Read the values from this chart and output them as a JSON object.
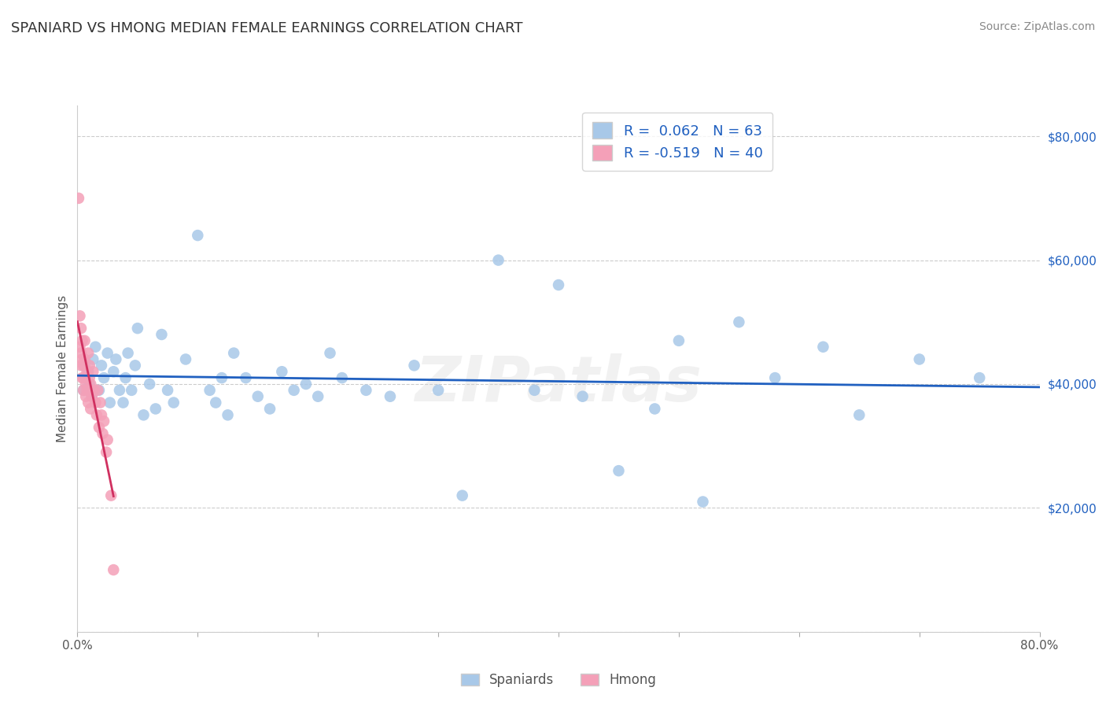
{
  "title": "SPANIARD VS HMONG MEDIAN FEMALE EARNINGS CORRELATION CHART",
  "source": "Source: ZipAtlas.com",
  "ylabel": "Median Female Earnings",
  "xlim": [
    0.0,
    0.8
  ],
  "ylim": [
    0,
    85000
  ],
  "xticks": [
    0.0,
    0.1,
    0.2,
    0.3,
    0.4,
    0.5,
    0.6,
    0.7,
    0.8
  ],
  "xticklabels": [
    "0.0%",
    "",
    "",
    "",
    "",
    "",
    "",
    "",
    "80.0%"
  ],
  "yticks_right": [
    0,
    20000,
    40000,
    60000,
    80000
  ],
  "yticklabels_right": [
    "",
    "$20,000",
    "$40,000",
    "$60,000",
    "$80,000"
  ],
  "spaniard_color": "#a8c8e8",
  "hmong_color": "#f4a0b8",
  "spaniard_line_color": "#2060c0",
  "hmong_line_color": "#d03060",
  "watermark_text": "ZIPatlas",
  "legend_label_spaniard": "R =  0.062   N = 63",
  "legend_label_hmong": "R = -0.519   N = 40",
  "spaniard_x": [
    0.005,
    0.006,
    0.007,
    0.009,
    0.01,
    0.012,
    0.013,
    0.015,
    0.018,
    0.02,
    0.022,
    0.025,
    0.027,
    0.03,
    0.032,
    0.035,
    0.038,
    0.04,
    0.042,
    0.045,
    0.048,
    0.05,
    0.055,
    0.06,
    0.065,
    0.07,
    0.075,
    0.08,
    0.09,
    0.1,
    0.11,
    0.115,
    0.12,
    0.125,
    0.13,
    0.14,
    0.15,
    0.16,
    0.17,
    0.18,
    0.19,
    0.2,
    0.21,
    0.22,
    0.24,
    0.26,
    0.28,
    0.3,
    0.32,
    0.35,
    0.38,
    0.4,
    0.42,
    0.45,
    0.48,
    0.5,
    0.52,
    0.55,
    0.58,
    0.62,
    0.65,
    0.7,
    0.75
  ],
  "spaniard_y": [
    39000,
    43000,
    41000,
    42000,
    40000,
    38000,
    44000,
    46000,
    39000,
    43000,
    41000,
    45000,
    37000,
    42000,
    44000,
    39000,
    37000,
    41000,
    45000,
    39000,
    43000,
    49000,
    35000,
    40000,
    36000,
    48000,
    39000,
    37000,
    44000,
    64000,
    39000,
    37000,
    41000,
    35000,
    45000,
    41000,
    38000,
    36000,
    42000,
    39000,
    40000,
    38000,
    45000,
    41000,
    39000,
    38000,
    43000,
    39000,
    22000,
    60000,
    39000,
    56000,
    38000,
    26000,
    36000,
    47000,
    21000,
    50000,
    41000,
    46000,
    35000,
    44000,
    41000
  ],
  "hmong_x": [
    0.001,
    0.002,
    0.002,
    0.003,
    0.003,
    0.003,
    0.004,
    0.004,
    0.004,
    0.005,
    0.005,
    0.005,
    0.006,
    0.006,
    0.007,
    0.007,
    0.008,
    0.008,
    0.009,
    0.009,
    0.01,
    0.01,
    0.01,
    0.011,
    0.011,
    0.012,
    0.013,
    0.014,
    0.015,
    0.016,
    0.017,
    0.018,
    0.019,
    0.02,
    0.021,
    0.022,
    0.024,
    0.025,
    0.028,
    0.03
  ],
  "hmong_y": [
    70000,
    51000,
    46000,
    49000,
    45000,
    43000,
    47000,
    44000,
    41000,
    43000,
    41000,
    39000,
    47000,
    44000,
    40000,
    38000,
    42000,
    39000,
    37000,
    45000,
    41000,
    39000,
    43000,
    36000,
    40000,
    38000,
    42000,
    39000,
    37000,
    35000,
    39000,
    33000,
    37000,
    35000,
    32000,
    34000,
    29000,
    31000,
    22000,
    10000
  ]
}
